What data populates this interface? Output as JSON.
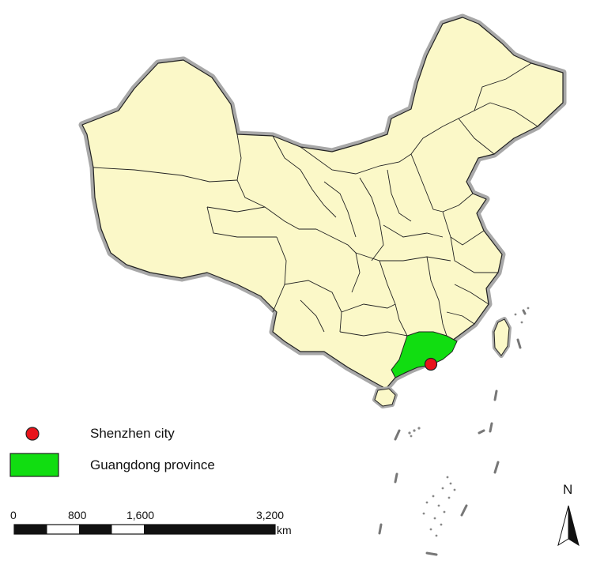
{
  "legend": {
    "city_label": "Shenzhen city",
    "province_label": "Guangdong province"
  },
  "scale_bar": {
    "ticks": [
      "0",
      "800",
      "1,600",
      "3,200"
    ],
    "unit": "km"
  },
  "north_arrow": {
    "label": "N"
  },
  "colors": {
    "country_fill": "#fbf8c8",
    "country_halo": "#a8a8a8",
    "province_highlight": "#11dd11",
    "city_marker": "#e8141b",
    "border": "#222222"
  },
  "icons": [
    "city-dot-icon",
    "province-swatch-icon",
    "north-arrow-icon"
  ]
}
